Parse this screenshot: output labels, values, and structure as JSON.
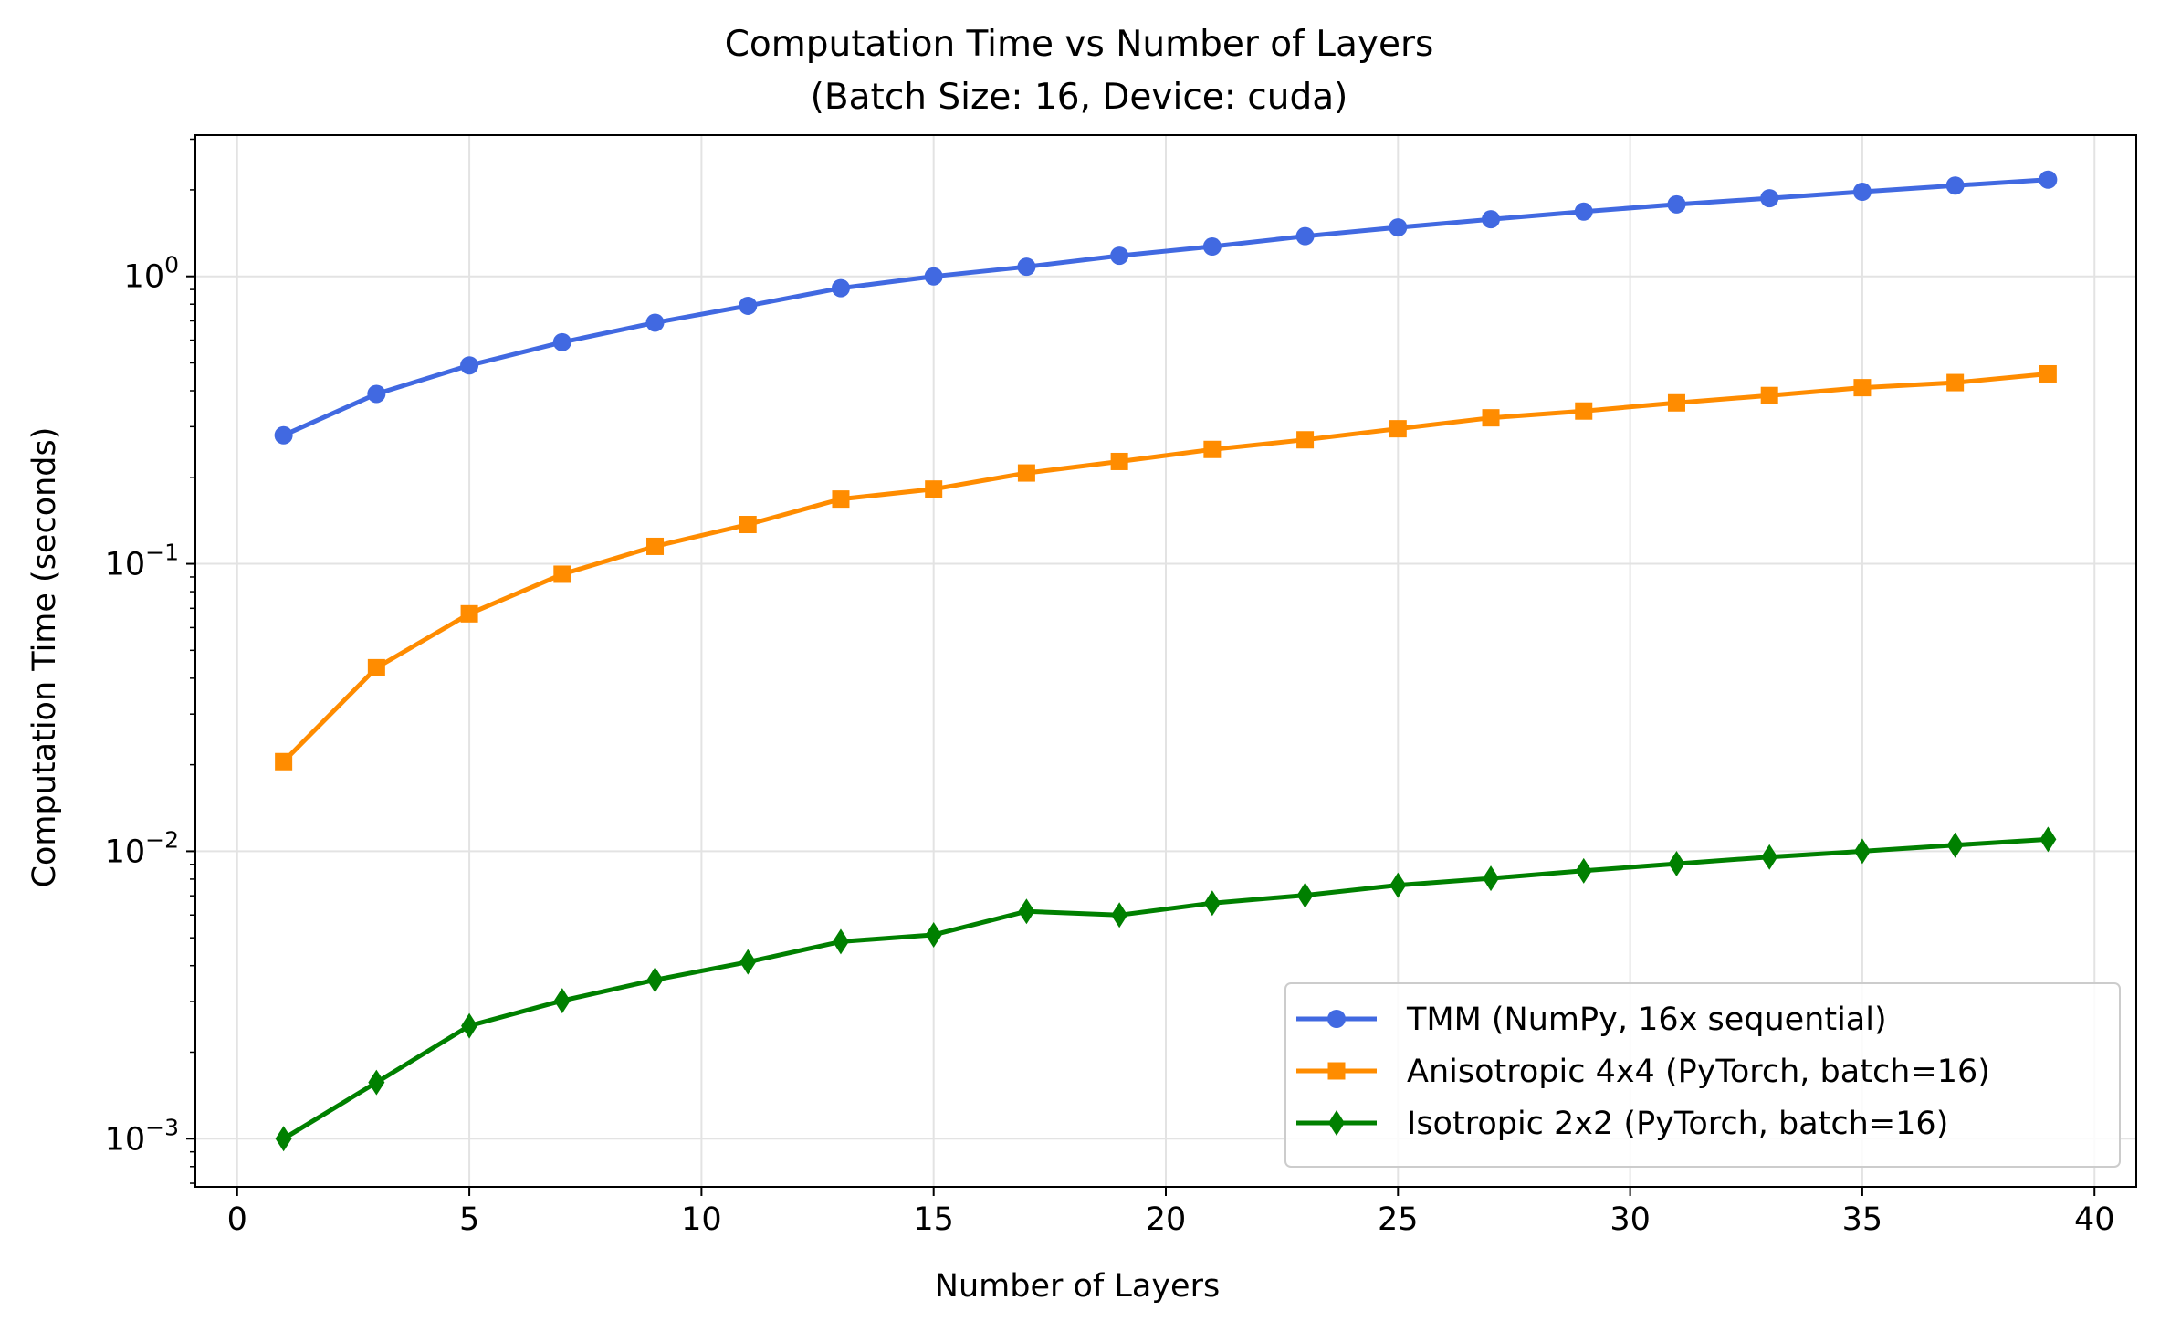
{
  "chart_data": {
    "type": "line",
    "title": "Computation Time vs Number of Layers",
    "subtitle": "(Batch Size: 16, Device: cuda)",
    "xlabel": "Number of Layers",
    "ylabel": "Computation Time (seconds)",
    "xlim": [
      -0.9,
      40.9
    ],
    "ylim": [
      0.00068,
      3.1
    ],
    "yscale": "log",
    "grid": true,
    "legend_position": "lower right",
    "xticks": [
      {
        "value": 0,
        "label": "0"
      },
      {
        "value": 5,
        "label": "5"
      },
      {
        "value": 10,
        "label": "10"
      },
      {
        "value": 15,
        "label": "15"
      },
      {
        "value": 20,
        "label": "20"
      },
      {
        "value": 25,
        "label": "25"
      },
      {
        "value": 30,
        "label": "30"
      },
      {
        "value": 35,
        "label": "35"
      },
      {
        "value": 40,
        "label": "40"
      }
    ],
    "yticks": [
      {
        "value": 1,
        "base": "10",
        "exp": "0"
      },
      {
        "value": 0.1,
        "base": "10",
        "exp": "−1"
      },
      {
        "value": 0.01,
        "base": "10",
        "exp": "−2"
      },
      {
        "value": 0.001,
        "base": "10",
        "exp": "−3"
      }
    ],
    "x": [
      1,
      3,
      5,
      7,
      9,
      11,
      13,
      15,
      17,
      19,
      21,
      23,
      25,
      27,
      29,
      31,
      33,
      35,
      37,
      39
    ],
    "series": [
      {
        "name": "TMM (NumPy, 16x sequential)",
        "color": "#4169e1",
        "marker": "circle",
        "values": [
          0.28,
          0.39,
          0.49,
          0.59,
          0.69,
          0.79,
          0.91,
          1.0,
          1.08,
          1.18,
          1.27,
          1.38,
          1.48,
          1.58,
          1.68,
          1.78,
          1.87,
          1.97,
          2.07,
          2.17
        ]
      },
      {
        "name": "Anisotropic 4x4 (PyTorch, batch=16)",
        "color": "#ff8c00",
        "marker": "square",
        "values": [
          0.0205,
          0.0435,
          0.067,
          0.092,
          0.115,
          0.137,
          0.168,
          0.182,
          0.207,
          0.227,
          0.25,
          0.27,
          0.295,
          0.322,
          0.34,
          0.363,
          0.385,
          0.41,
          0.427,
          0.458
        ]
      },
      {
        "name": "Isotropic 2x2 (PyTorch, batch=16)",
        "color": "#008000",
        "marker": "diamond",
        "values": [
          0.001,
          0.00157,
          0.00247,
          0.00302,
          0.00357,
          0.00412,
          0.00485,
          0.00512,
          0.00618,
          0.006,
          0.0066,
          0.00703,
          0.00762,
          0.00805,
          0.00855,
          0.00905,
          0.00955,
          0.01,
          0.0105,
          0.011
        ]
      }
    ]
  }
}
